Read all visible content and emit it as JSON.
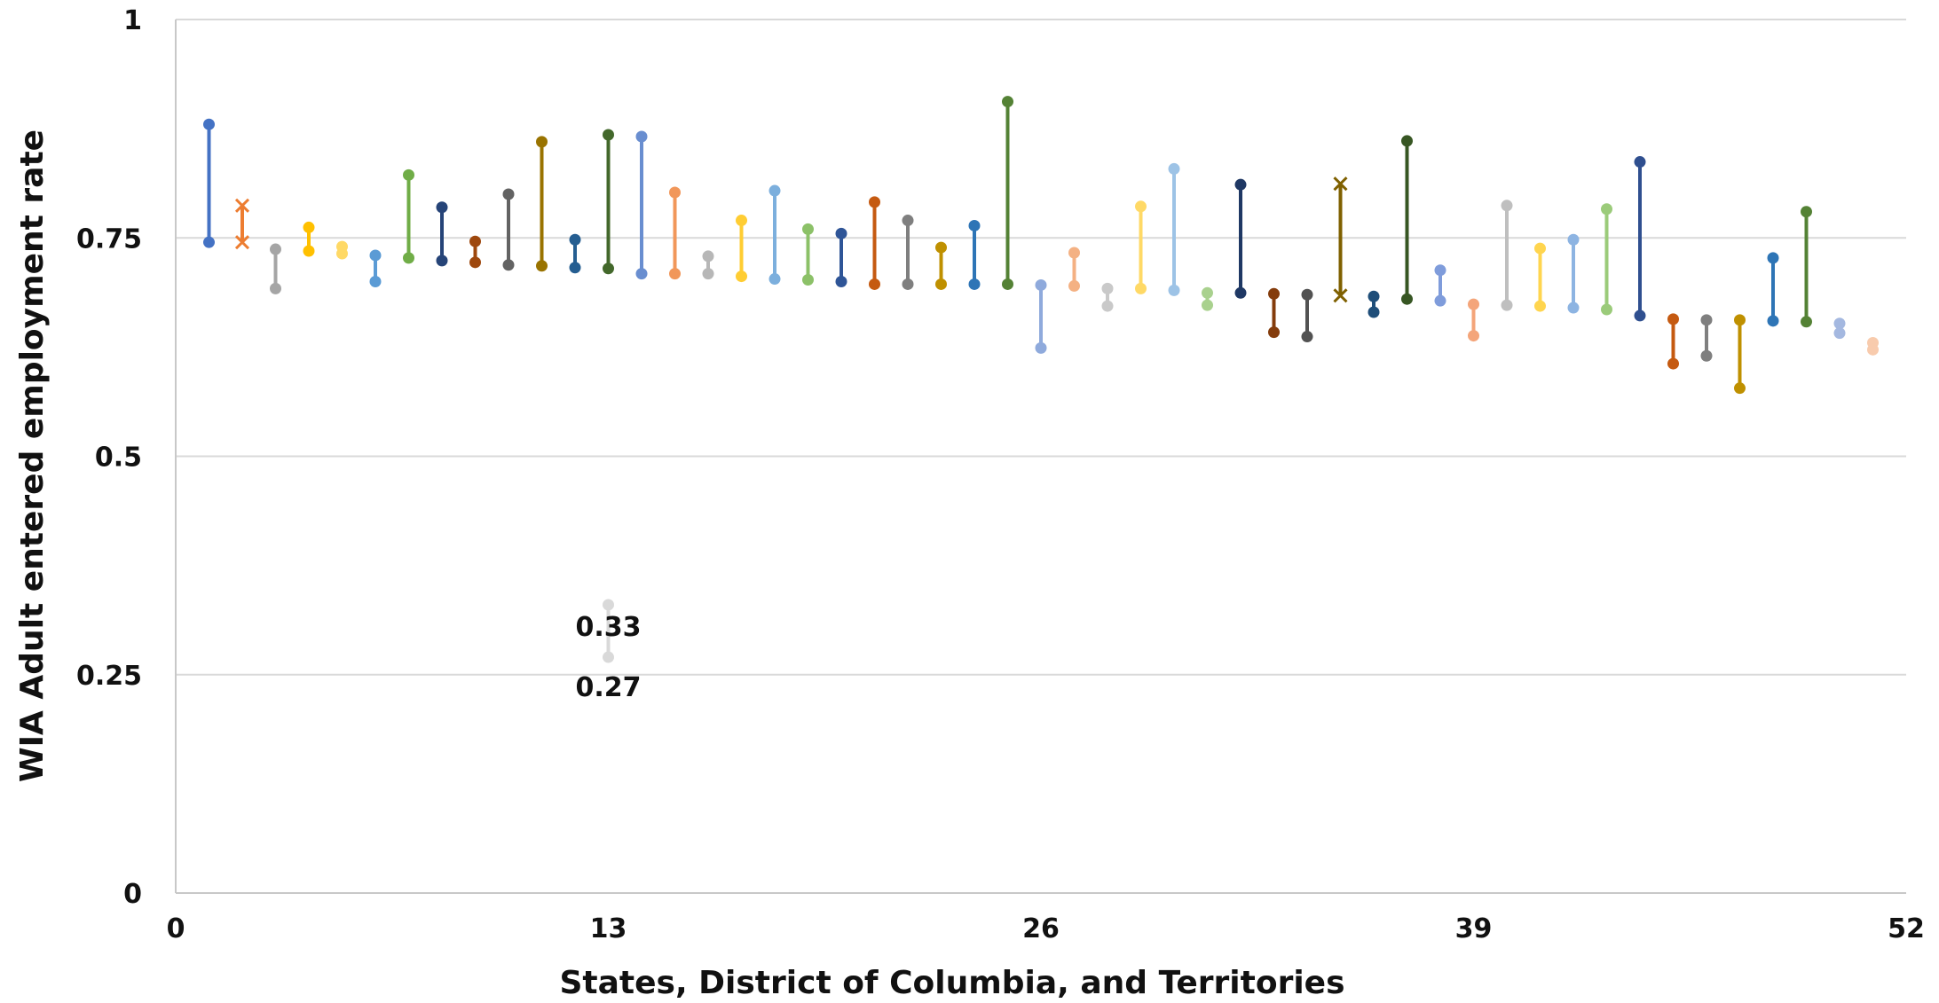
{
  "chart_data": {
    "type": "scatter",
    "subtype": "dumbbell",
    "xlabel": "States, District of Columbia, and Territories",
    "ylabel": "WIA Adult entered employment rate",
    "xlim": [
      0,
      52
    ],
    "ylim": [
      0,
      1
    ],
    "x_ticks": [
      "0",
      "13",
      "26",
      "39",
      "52"
    ],
    "y_ticks": [
      "0",
      "0.25",
      "0.5",
      "0.75",
      "1"
    ],
    "grid": "horizontal",
    "annotations": [
      {
        "x": 13,
        "y": 0.33,
        "text": "0.33"
      },
      {
        "x": 13,
        "y": 0.27,
        "text": "0.27"
      }
    ],
    "series": [
      {
        "x": 1,
        "high": 0.88,
        "low": 0.745,
        "color": "#4472C4",
        "marker": "circle"
      },
      {
        "x": 2,
        "high": 0.787,
        "low": 0.745,
        "color": "#ED7D31",
        "marker": "x"
      },
      {
        "x": 3,
        "high": 0.737,
        "low": 0.692,
        "color": "#A5A5A5",
        "marker": "circle"
      },
      {
        "x": 4,
        "high": 0.762,
        "low": 0.735,
        "color": "#FFC000",
        "marker": "circle"
      },
      {
        "x": 5,
        "high": 0.74,
        "low": 0.732,
        "color": "#FFD966",
        "marker": "circle"
      },
      {
        "x": 6,
        "high": 0.73,
        "low": 0.7,
        "color": "#5B9BD5",
        "marker": "circle"
      },
      {
        "x": 7,
        "high": 0.822,
        "low": 0.727,
        "color": "#70AD47",
        "marker": "circle"
      },
      {
        "x": 8,
        "high": 0.785,
        "low": 0.724,
        "color": "#264478",
        "marker": "circle"
      },
      {
        "x": 9,
        "high": 0.746,
        "low": 0.722,
        "color": "#9E480E",
        "marker": "circle"
      },
      {
        "x": 10,
        "high": 0.8,
        "low": 0.719,
        "color": "#636363",
        "marker": "circle"
      },
      {
        "x": 11,
        "high": 0.86,
        "low": 0.718,
        "color": "#997300",
        "marker": "circle"
      },
      {
        "x": 12,
        "high": 0.748,
        "low": 0.716,
        "color": "#255E91",
        "marker": "circle"
      },
      {
        "x": 13,
        "high": 0.868,
        "low": 0.715,
        "color": "#43682B",
        "marker": "circle"
      },
      {
        "x": 13,
        "high": 0.33,
        "low": 0.27,
        "color": "#D9D9D9",
        "marker": "circle"
      },
      {
        "x": 14,
        "high": 0.866,
        "low": 0.709,
        "color": "#698ED0",
        "marker": "circle"
      },
      {
        "x": 15,
        "high": 0.802,
        "low": 0.709,
        "color": "#F1975A",
        "marker": "circle"
      },
      {
        "x": 16,
        "high": 0.729,
        "low": 0.709,
        "color": "#B7B7B7",
        "marker": "circle"
      },
      {
        "x": 17,
        "high": 0.77,
        "low": 0.706,
        "color": "#FFCD33",
        "marker": "circle"
      },
      {
        "x": 18,
        "high": 0.804,
        "low": 0.703,
        "color": "#7CAFDD",
        "marker": "circle"
      },
      {
        "x": 19,
        "high": 0.76,
        "low": 0.702,
        "color": "#8CC168",
        "marker": "circle"
      },
      {
        "x": 20,
        "high": 0.755,
        "low": 0.7,
        "color": "#2F5597",
        "marker": "circle"
      },
      {
        "x": 21,
        "high": 0.791,
        "low": 0.697,
        "color": "#C55A11",
        "marker": "circle"
      },
      {
        "x": 22,
        "high": 0.77,
        "low": 0.697,
        "color": "#7F7F7F",
        "marker": "circle"
      },
      {
        "x": 23,
        "high": 0.739,
        "low": 0.697,
        "color": "#BF9000",
        "marker": "circle"
      },
      {
        "x": 24,
        "high": 0.764,
        "low": 0.697,
        "color": "#2E75B6",
        "marker": "circle"
      },
      {
        "x": 25,
        "high": 0.906,
        "low": 0.697,
        "color": "#548235",
        "marker": "circle"
      },
      {
        "x": 26,
        "high": 0.696,
        "low": 0.624,
        "color": "#8FAADC",
        "marker": "circle"
      },
      {
        "x": 27,
        "high": 0.733,
        "low": 0.695,
        "color": "#F4B183",
        "marker": "circle"
      },
      {
        "x": 28,
        "high": 0.692,
        "low": 0.672,
        "color": "#C9C9C9",
        "marker": "circle"
      },
      {
        "x": 29,
        "high": 0.786,
        "low": 0.692,
        "color": "#FFD966",
        "marker": "circle"
      },
      {
        "x": 30,
        "high": 0.829,
        "low": 0.69,
        "color": "#9DC3E6",
        "marker": "circle"
      },
      {
        "x": 31,
        "high": 0.687,
        "low": 0.673,
        "color": "#A9D18E",
        "marker": "circle"
      },
      {
        "x": 32,
        "high": 0.811,
        "low": 0.687,
        "color": "#1F3864",
        "marker": "circle"
      },
      {
        "x": 33,
        "high": 0.686,
        "low": 0.642,
        "color": "#843C0C",
        "marker": "circle"
      },
      {
        "x": 34,
        "high": 0.685,
        "low": 0.637,
        "color": "#525252",
        "marker": "circle"
      },
      {
        "x": 35,
        "high": 0.812,
        "low": 0.684,
        "color": "#7F6000",
        "marker": "x"
      },
      {
        "x": 36,
        "high": 0.683,
        "low": 0.665,
        "color": "#1F4E79",
        "marker": "circle"
      },
      {
        "x": 37,
        "high": 0.861,
        "low": 0.68,
        "color": "#375623",
        "marker": "circle"
      },
      {
        "x": 38,
        "high": 0.713,
        "low": 0.678,
        "color": "#7F9CDB",
        "marker": "circle"
      },
      {
        "x": 39,
        "high": 0.674,
        "low": 0.638,
        "color": "#F4A57A",
        "marker": "circle"
      },
      {
        "x": 40,
        "high": 0.787,
        "low": 0.673,
        "color": "#BFBFBF",
        "marker": "circle"
      },
      {
        "x": 41,
        "high": 0.738,
        "low": 0.672,
        "color": "#FFD54F",
        "marker": "circle"
      },
      {
        "x": 42,
        "high": 0.748,
        "low": 0.67,
        "color": "#8DB4E2",
        "marker": "circle"
      },
      {
        "x": 43,
        "high": 0.783,
        "low": 0.668,
        "color": "#9BCB7A",
        "marker": "circle"
      },
      {
        "x": 44,
        "high": 0.837,
        "low": 0.661,
        "color": "#2F4F8F",
        "marker": "circle"
      },
      {
        "x": 45,
        "high": 0.657,
        "low": 0.606,
        "color": "#C55A11",
        "marker": "circle"
      },
      {
        "x": 46,
        "high": 0.656,
        "low": 0.615,
        "color": "#7F7F7F",
        "marker": "circle"
      },
      {
        "x": 47,
        "high": 0.656,
        "low": 0.578,
        "color": "#BF9000",
        "marker": "circle"
      },
      {
        "x": 48,
        "high": 0.727,
        "low": 0.655,
        "color": "#2E75B6",
        "marker": "circle"
      },
      {
        "x": 49,
        "high": 0.78,
        "low": 0.654,
        "color": "#548235",
        "marker": "circle"
      },
      {
        "x": 50,
        "high": 0.652,
        "low": 0.641,
        "color": "#A4B8E0",
        "marker": "circle"
      },
      {
        "x": 51,
        "high": 0.63,
        "low": 0.622,
        "color": "#F8CBAD",
        "marker": "circle"
      }
    ]
  }
}
